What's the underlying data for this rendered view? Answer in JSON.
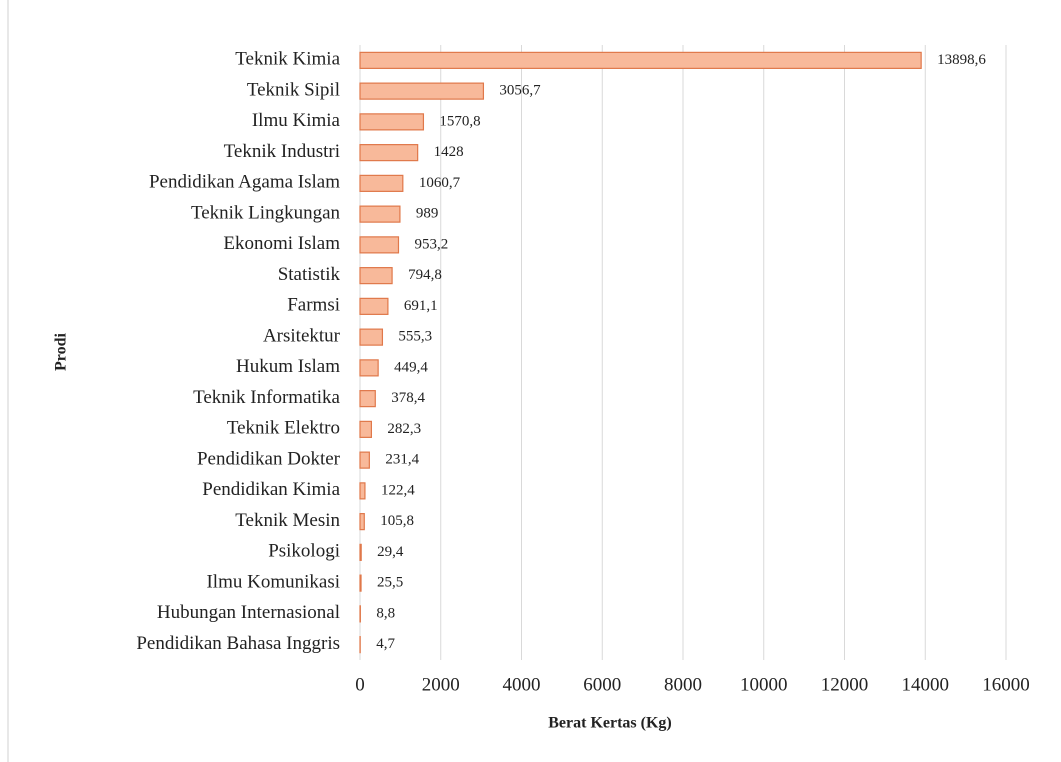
{
  "chart_data": {
    "type": "barh",
    "categories": [
      "Teknik Kimia",
      "Teknik Sipil",
      "Ilmu Kimia",
      "Teknik Industri",
      "Pendidikan Agama Islam",
      "Teknik Lingkungan",
      "Ekonomi Islam",
      "Statistik",
      "Farmsi",
      "Arsitektur",
      "Hukum Islam",
      "Teknik Informatika",
      "Teknik Elektro",
      "Pendidikan Dokter",
      "Pendidikan Kimia",
      "Teknik Mesin",
      "Psikologi",
      "Ilmu Komunikasi",
      "Hubungan Internasional",
      "Pendidikan Bahasa Inggris"
    ],
    "values": [
      13898.6,
      3056.7,
      1570.8,
      1428,
      1060.7,
      989,
      953.2,
      794.8,
      691.1,
      555.3,
      449.4,
      378.4,
      282.3,
      231.4,
      122.4,
      105.8,
      29.4,
      25.5,
      8.8,
      4.7
    ],
    "value_labels": [
      "13898,6",
      "3056,7",
      "1570,8",
      "1428",
      "1060,7",
      "989",
      "953,2",
      "794,8",
      "691,1",
      "555,3",
      "449,4",
      "378,4",
      "282,3",
      "231,4",
      "122,4",
      "105,8",
      "29,4",
      "25,5",
      "8,8",
      "4,7"
    ],
    "color": "#f8b99a",
    "xlim": [
      0,
      16000
    ],
    "xticks": [
      0,
      2000,
      4000,
      6000,
      8000,
      10000,
      12000,
      14000,
      16000
    ],
    "xlabel": "Berat Kertas (Kg)",
    "ylabel": "Prodi",
    "grid": true
  }
}
